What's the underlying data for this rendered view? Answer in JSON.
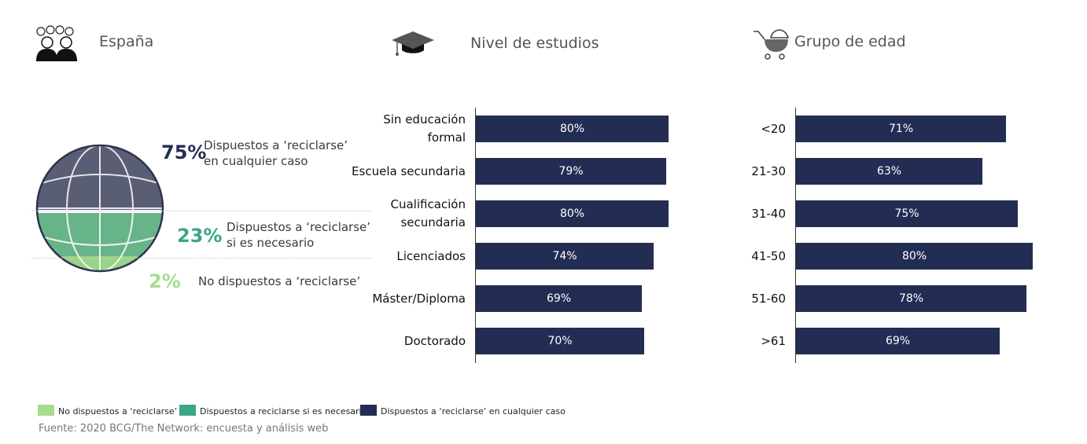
{
  "headers": {
    "spain": {
      "title": "España",
      "icon": "people-icon"
    },
    "education": {
      "title": "Nivel de estudios",
      "icon": "graduation-cap-icon"
    },
    "age": {
      "title": "Grupo de edad",
      "icon": "baby-stroller-icon"
    }
  },
  "spain_breakdown": [
    {
      "pct": "75%",
      "line1": "Dispuestos a ‘reciclarse’",
      "line2": "en cualquier caso",
      "color": "#232d54"
    },
    {
      "pct": "23%",
      "line1": "Dispuestos a ‘reciclarse’",
      "line2": "si es necesario",
      "color": "#3aa588"
    },
    {
      "pct": "2%",
      "line1": "No dispuestos a ‘reciclarse’",
      "line2": "",
      "color": "#a6dc8e"
    }
  ],
  "globe_colors": {
    "top": "#5a5e74",
    "middle": "#68b489",
    "bottom": "#98d486",
    "lines": "#ffffff"
  },
  "chart_data": [
    {
      "type": "bar",
      "orientation": "horizontal",
      "title": "Nivel de estudios",
      "categories": [
        [
          "Sin educación",
          "formal"
        ],
        [
          "Escuela secundaria"
        ],
        [
          "Cualificación",
          "secundaria"
        ],
        [
          "Licenciados"
        ],
        [
          "Máster/Diploma"
        ],
        [
          "Doctorado"
        ]
      ],
      "values": [
        80,
        79,
        80,
        74,
        69,
        70
      ],
      "labels": [
        "80%",
        "79%",
        "80%",
        "74%",
        "69%",
        "70%"
      ],
      "xlim": [
        0,
        100
      ],
      "bar_color": "#232d54",
      "grid": false
    },
    {
      "type": "bar",
      "orientation": "horizontal",
      "title": "Grupo de edad",
      "categories": [
        [
          "<20"
        ],
        [
          "21-30"
        ],
        [
          "31-40"
        ],
        [
          "41-50"
        ],
        [
          "51-60"
        ],
        [
          ">61"
        ]
      ],
      "values": [
        71,
        63,
        75,
        80,
        78,
        69
      ],
      "labels": [
        "71%",
        "63%",
        "75%",
        "80%",
        "78%",
        "69%"
      ],
      "xlim": [
        0,
        100
      ],
      "bar_color": "#232d54",
      "grid": false
    }
  ],
  "legend": [
    {
      "label": "No dispuestos a ‘reciclarse’",
      "color": "#a6dc8e"
    },
    {
      "label": "Dispuestos a reciclarse si es necesario",
      "color": "#3aa588"
    },
    {
      "label": "Dispuestos a ‘reciclarse’ en cualquier caso",
      "color": "#232d54"
    }
  ],
  "source": "Fuente: 2020 BCG/The Network: encuesta y análisis web"
}
